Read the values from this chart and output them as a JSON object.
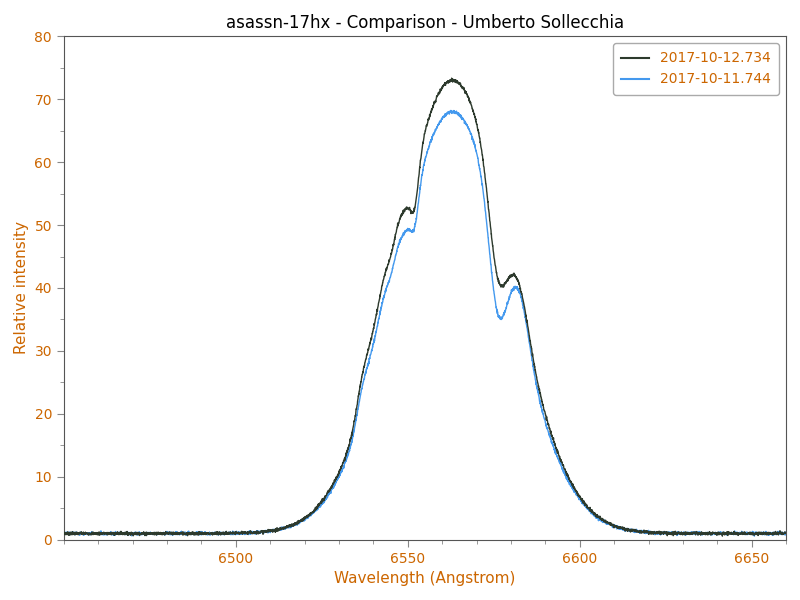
{
  "title": "asassn-17hx - Comparison - Umberto Sollecchia",
  "xlabel": "Wavelength (Angstrom)",
  "ylabel": "Relative intensity",
  "xlim": [
    6450,
    6660
  ],
  "ylim": [
    0,
    80
  ],
  "yticks": [
    0,
    10,
    20,
    30,
    40,
    50,
    60,
    70,
    80
  ],
  "xticks": [
    6500,
    6550,
    6600,
    6650
  ],
  "color_black": "#2d3a2d",
  "color_blue": "#4499ee",
  "label_black": "2017-10-12.734",
  "label_blue": "2017-10-11.744",
  "title_fontsize": 12,
  "axis_label_color": "#cc6600",
  "tick_label_color": "#cc6600",
  "background_color": "#ffffff"
}
